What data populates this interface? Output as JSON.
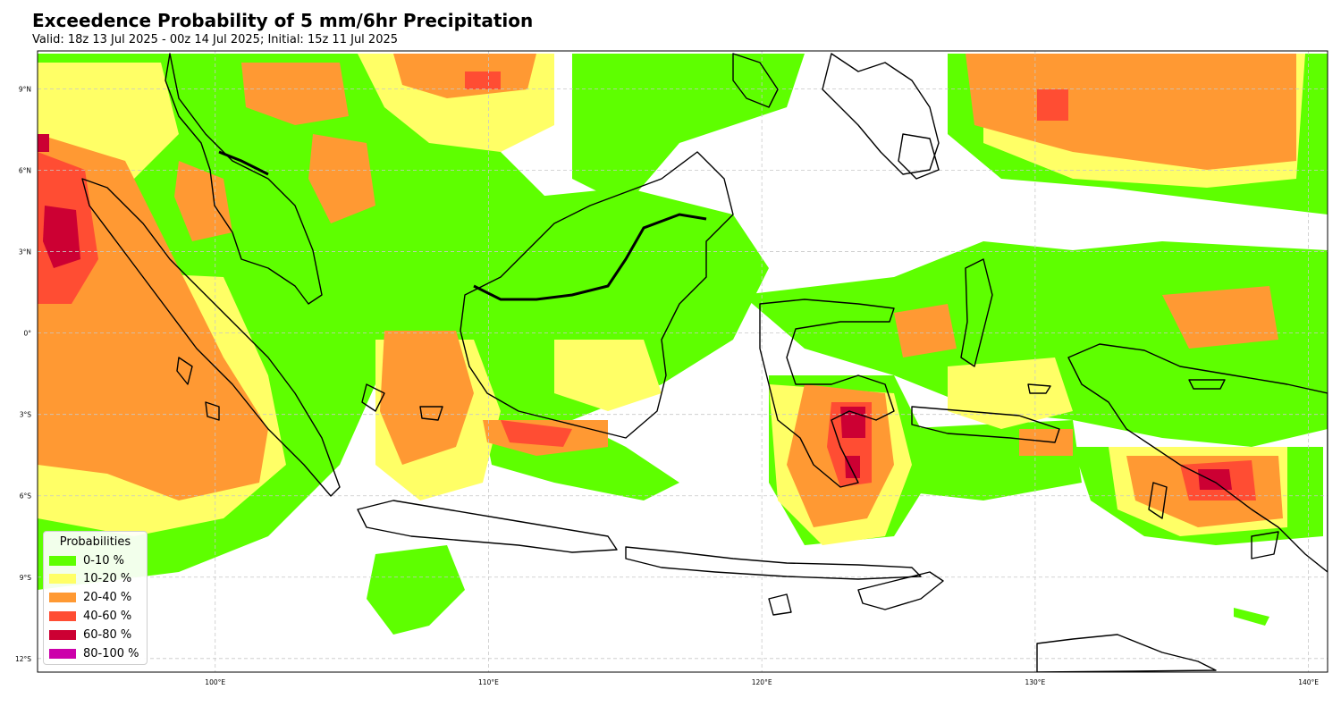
{
  "title": "Exceedence Probability of 5 mm/6hr Precipitation",
  "subtitle": "Valid: 18z 13 Jul 2025 - 00z 14 Jul 2025; Initial: 15z 11 Jul 2025",
  "map": {
    "lon_range": [
      93.5,
      140.7
    ],
    "lat_range": [
      -12.5,
      10.4
    ],
    "lat_ticks": [
      {
        "value": 9,
        "label": "9°N"
      },
      {
        "value": 6,
        "label": "6°N"
      },
      {
        "value": 3,
        "label": "3°N"
      },
      {
        "value": 0,
        "label": "0°"
      },
      {
        "value": -3,
        "label": "3°S"
      },
      {
        "value": -6,
        "label": "6°S"
      },
      {
        "value": -9,
        "label": "9°S"
      },
      {
        "value": -12,
        "label": "12°S"
      }
    ],
    "lon_ticks": [
      {
        "value": 100,
        "label": "100°E"
      },
      {
        "value": 110,
        "label": "110°E"
      },
      {
        "value": 120,
        "label": "120°E"
      },
      {
        "value": 130,
        "label": "130°E"
      },
      {
        "value": 140,
        "label": "140°E"
      }
    ],
    "gridlines": true
  },
  "legend": {
    "title": "Probabilities",
    "placement": "bottom-left",
    "items": [
      {
        "label": "0-10 %",
        "color": "#5eff00"
      },
      {
        "label": "10-20 %",
        "color": "#ffff66"
      },
      {
        "label": "20-40 %",
        "color": "#ff9933"
      },
      {
        "label": "40-60 %",
        "color": "#ff4d33"
      },
      {
        "label": "60-80 %",
        "color": "#cc0033"
      },
      {
        "label": "80-100 %",
        "color": "#cc00aa"
      }
    ]
  }
}
